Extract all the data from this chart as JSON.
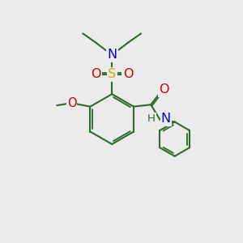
{
  "background_color": "#ebebeb",
  "bond_color": "#2d6b2d",
  "atom_colors": {
    "N": "#0000cc",
    "O": "#cc0000",
    "S": "#ccaa00",
    "C": "#2d6b2d"
  },
  "bond_width": 1.5,
  "font_size": 10.5
}
